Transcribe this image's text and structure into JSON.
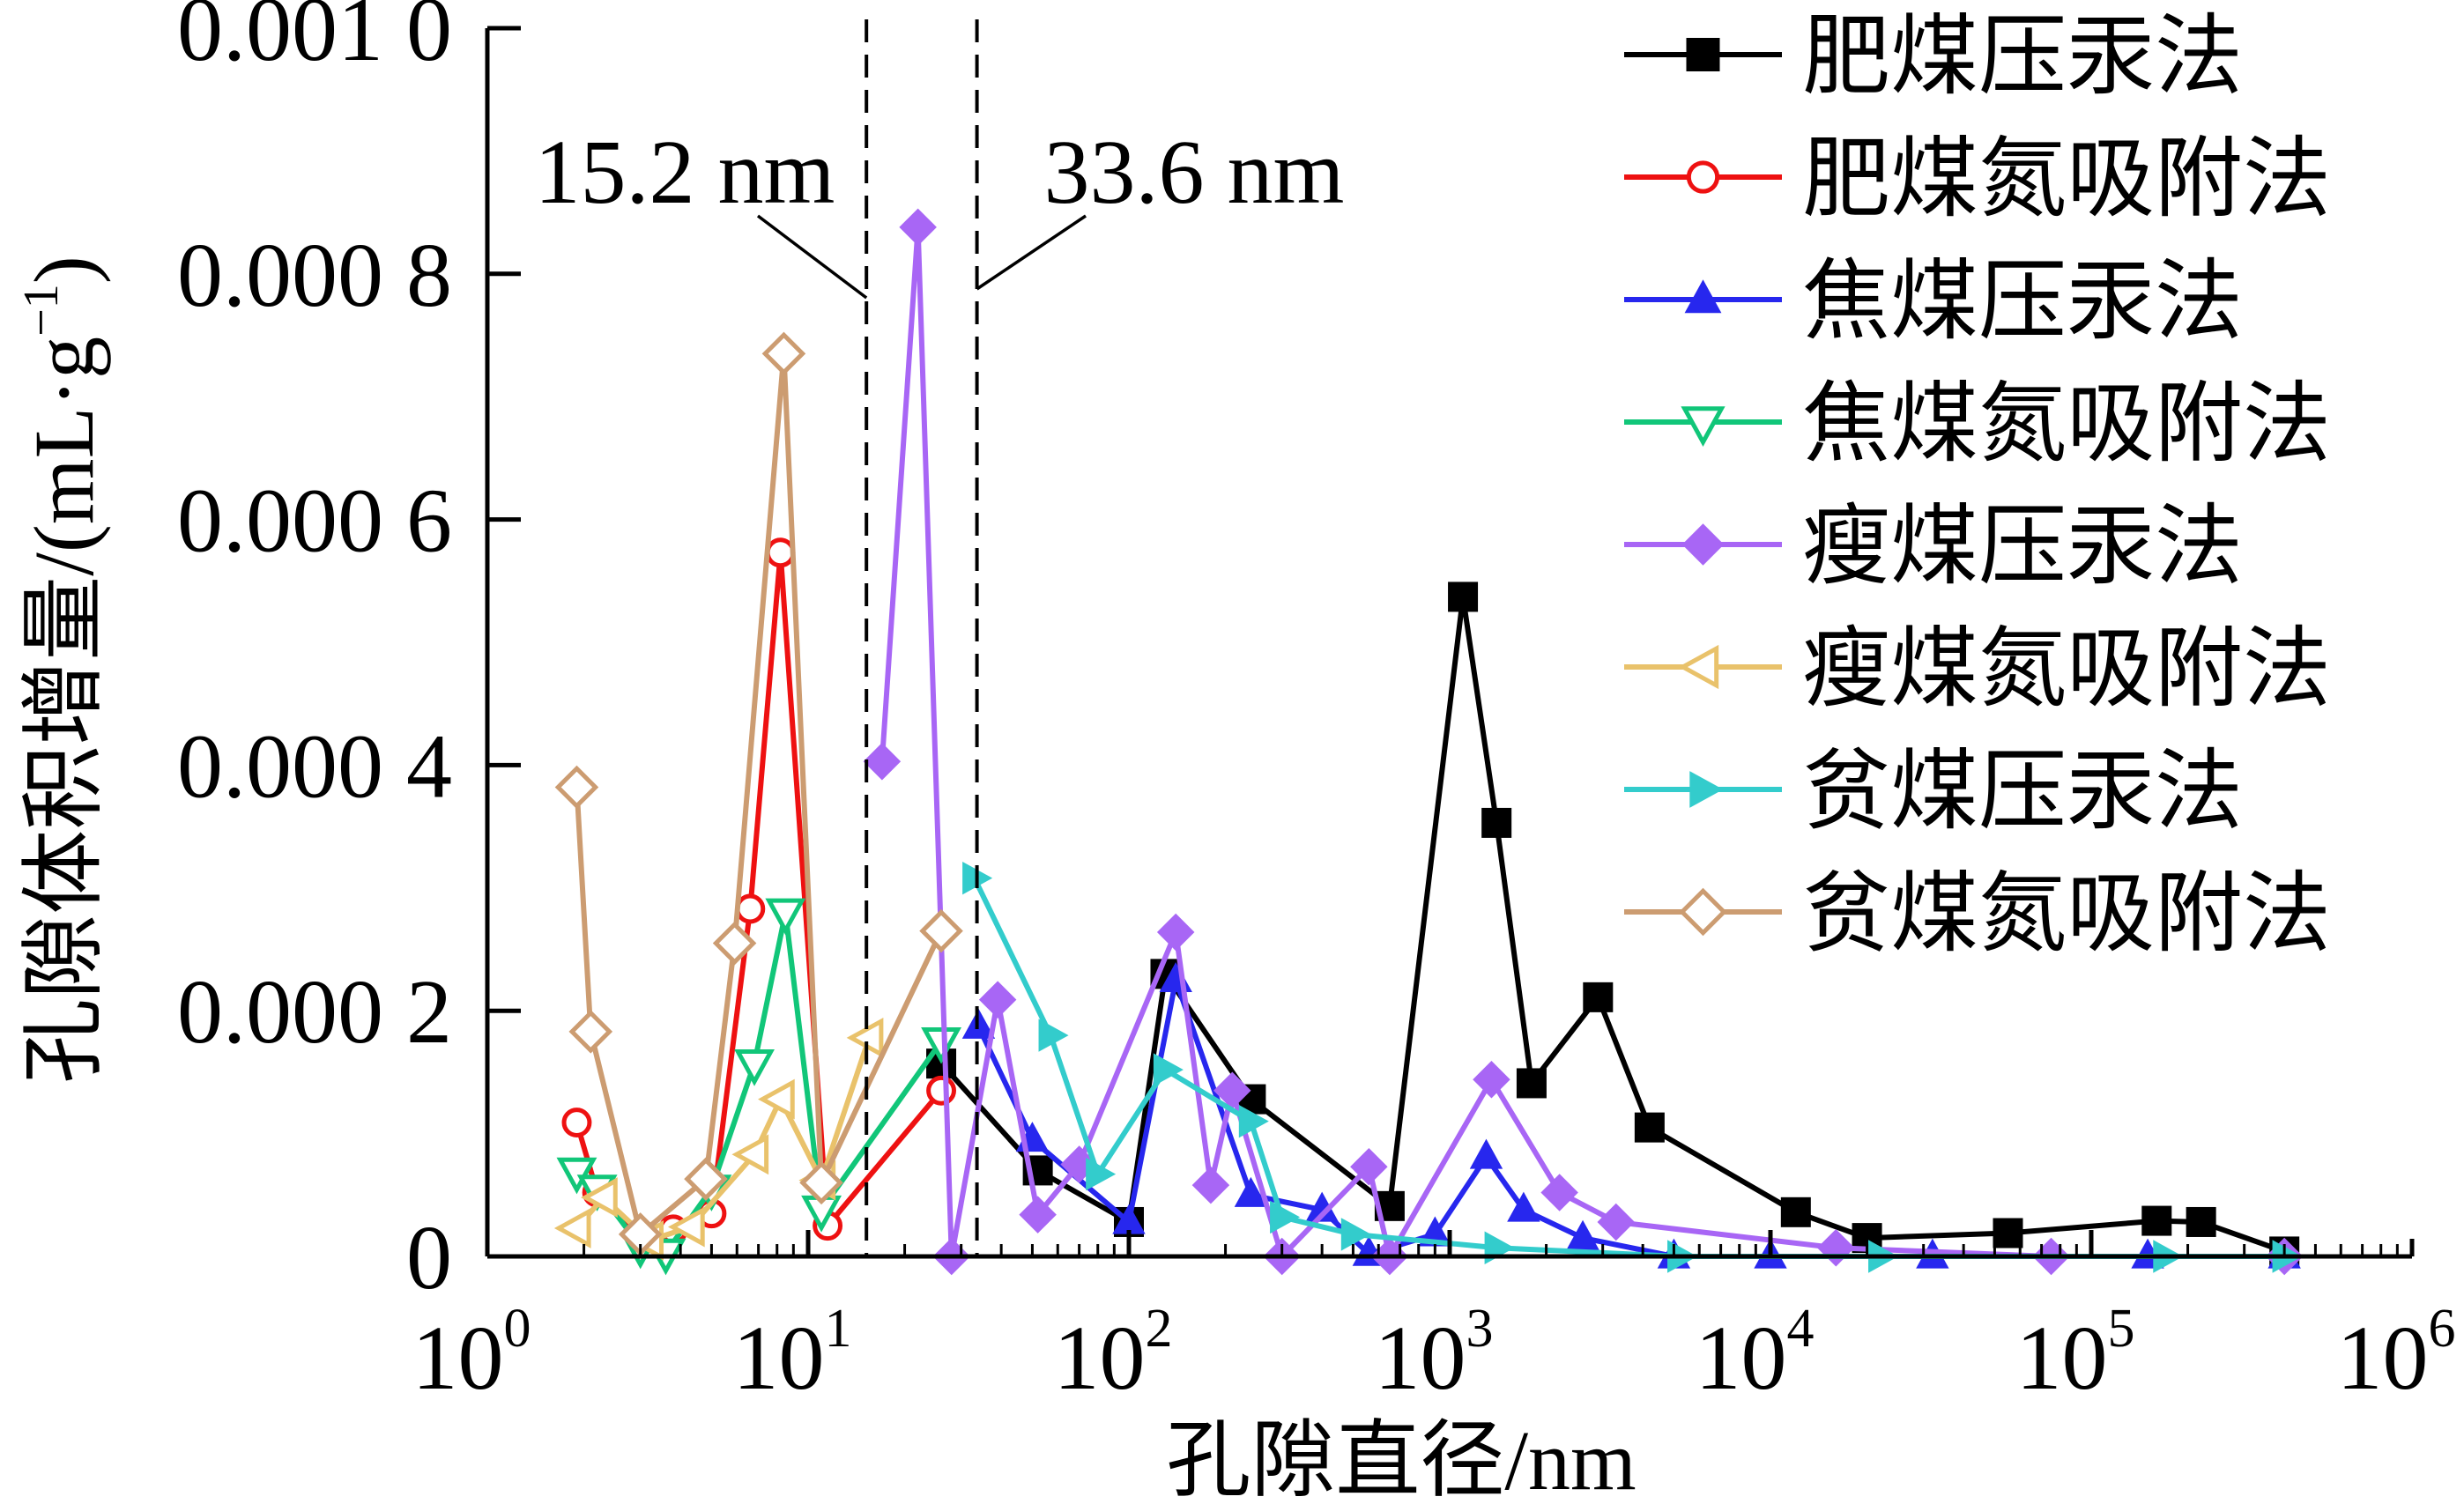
{
  "chart_data": {
    "type": "line",
    "title": "",
    "xlabel": "孔隙直径/nm",
    "ylabel": "孔隙体积增量/(mL·g⁻¹)",
    "ylabel_main": "孔隙体积增量/(mL·g",
    "ylabel_sup": "−1",
    "ylabel_close": ")",
    "xscale": "log",
    "xlim": [
      1,
      1000000
    ],
    "ylim": [
      0,
      0.001
    ],
    "grid": false,
    "legend_position": "top-right",
    "x_ticks": [
      {
        "base": "10",
        "exp": "0",
        "value": 1
      },
      {
        "base": "10",
        "exp": "1",
        "value": 10
      },
      {
        "base": "10",
        "exp": "2",
        "value": 100
      },
      {
        "base": "10",
        "exp": "3",
        "value": 1000
      },
      {
        "base": "10",
        "exp": "4",
        "value": 10000
      },
      {
        "base": "10",
        "exp": "5",
        "value": 100000
      },
      {
        "base": "10",
        "exp": "6",
        "value": 1000000
      }
    ],
    "y_ticks": [
      {
        "label": "0",
        "value": 0
      },
      {
        "label": "0.000 2",
        "value": 0.0002
      },
      {
        "label": "0.000 4",
        "value": 0.0004
      },
      {
        "label": "0.000 6",
        "value": 0.0006
      },
      {
        "label": "0.000 8",
        "value": 0.0008
      },
      {
        "label": "0.001 0",
        "value": 0.001
      }
    ],
    "annotations": [
      {
        "text": "15.2 nm",
        "x": 15.2,
        "style": "dashed-vline"
      },
      {
        "text": "33.6 nm",
        "x": 33.6,
        "style": "dashed-vline"
      }
    ],
    "series": [
      {
        "name": "肥煤压汞法",
        "color": "#000000",
        "marker": "square",
        "filled": true,
        "x": [
          26,
          52,
          100,
          130,
          240,
          650,
          1100,
          1400,
          1800,
          2900,
          4200,
          12000,
          20000,
          55000,
          160000,
          220000,
          400000
        ],
        "y": [
          0.000157,
          7e-05,
          2.8e-05,
          0.00023,
          0.000128,
          4.1e-05,
          0.000537,
          0.000353,
          0.000141,
          0.000211,
          0.000105,
          3.6e-05,
          1.5e-05,
          1.9e-05,
          2.9e-05,
          2.8e-05,
          4e-06
        ]
      },
      {
        "name": "肥煤氮吸附法",
        "color": "#ee1111",
        "marker": "circle",
        "filled": false,
        "x": [
          1.9,
          2.2,
          3.0,
          3.8,
          5.0,
          6.6,
          8.2,
          11.5,
          26
        ],
        "y": [
          0.000109,
          5.2e-05,
          1.8e-05,
          2.2e-05,
          3.5e-05,
          0.000283,
          0.000573,
          2.5e-05,
          0.000135
        ]
      },
      {
        "name": "焦煤压汞法",
        "color": "#2727ee",
        "marker": "triangle-up",
        "filled": true,
        "x": [
          34,
          50,
          100,
          140,
          240,
          400,
          560,
          900,
          1300,
          1700,
          2600,
          5000,
          10000,
          32000,
          150000,
          400000
        ],
        "y": [
          0.000187,
          9.5e-05,
          2.8e-05,
          0.000225,
          5e-05,
          3.8e-05,
          2e-06,
          1.8e-05,
          8.1e-05,
          3.8e-05,
          1.5e-05,
          0.0,
          0.0,
          0.0,
          0.0,
          0.0
        ]
      },
      {
        "name": "焦煤氮吸附法",
        "color": "#11c679",
        "marker": "triangle-down",
        "filled": false,
        "x": [
          1.9,
          2.2,
          3.0,
          3.6,
          5.0,
          6.8,
          8.5,
          11,
          26
        ],
        "y": [
          6.9e-05,
          5.5e-05,
          8e-06,
          3e-06,
          5.5e-05,
          0.000157,
          0.00028,
          3.8e-05,
          0.000175
        ]
      },
      {
        "name": "瘦煤压汞法",
        "color": "#a866f5",
        "marker": "diamond",
        "filled": true,
        "x": [
          17,
          22,
          28,
          39,
          52,
          70,
          140,
          180,
          210,
          300,
          560,
          650,
          1350,
          2200,
          3300,
          16000,
          75000,
          400000
        ],
        "y": [
          0.000403,
          0.000838,
          0.0,
          0.000209,
          3.4e-05,
          7.5e-05,
          0.000264,
          5.8e-05,
          0.000135,
          0.0,
          7.3e-05,
          0.0,
          0.000144,
          5.2e-05,
          2.8e-05,
          7e-06,
          0.0,
          0.0
        ]
      },
      {
        "name": "瘦煤氮吸附法",
        "color": "#e9c26b",
        "marker": "triangle-left",
        "filled": false,
        "x": [
          1.9,
          2.3,
          3.2,
          4.3,
          6.8,
          8.2,
          11,
          15.5
        ],
        "y": [
          2.3e-05,
          4.8e-05,
          1.3e-05,
          2.4e-05,
          8.3e-05,
          0.000128,
          6.2e-05,
          0.000178
        ]
      },
      {
        "name": "贫煤压汞法",
        "color": "#33cccc",
        "marker": "triangle-right",
        "filled": true,
        "x": [
          33,
          57,
          80,
          130,
          240,
          300,
          500,
          1400,
          5200,
          22000,
          170000,
          400000
        ],
        "y": [
          0.000308,
          0.00018,
          6.7e-05,
          0.000152,
          0.00011,
          3.2e-05,
          1.8e-05,
          7e-06,
          0.0,
          0.0,
          0.0,
          0.0
        ]
      },
      {
        "name": "贫煤氮吸附法",
        "color": "#cc9c71",
        "marker": "diamond",
        "filled": false,
        "x": [
          1.9,
          2.1,
          3.0,
          4.8,
          5.9,
          8.4,
          11,
          26
        ],
        "y": [
          0.000382,
          0.000183,
          1.8e-05,
          6.3e-05,
          0.000255,
          0.000735,
          6e-05,
          0.000265
        ]
      }
    ]
  }
}
